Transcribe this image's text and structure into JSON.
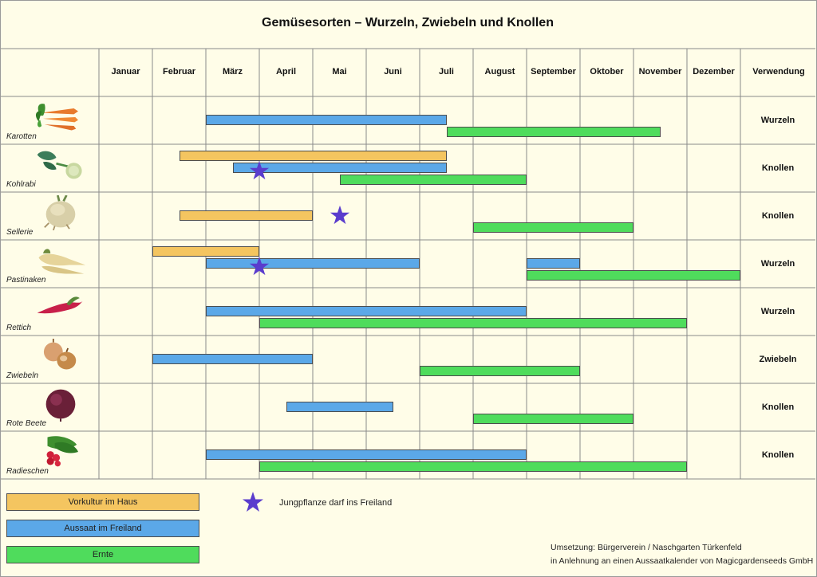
{
  "title": "Gemüsesorten – Wurzeln, Zwiebeln und Knollen",
  "months": [
    "Januar",
    "Februar",
    "März",
    "April",
    "Mai",
    "Juni",
    "Juli",
    "August",
    "September",
    "Oktober",
    "November",
    "Dezember"
  ],
  "use_header": "Verwendung",
  "colors": {
    "vorkultur": "#f4c560",
    "aussaat": "#5ba8e8",
    "ernte": "#4fdc5c",
    "star": "#5a3ccd",
    "background": "#fffde8",
    "grid": "#8a8a8a"
  },
  "chart_data": {
    "type": "gantt",
    "title": "Gemüsesorten – Wurzeln, Zwiebeln und Knollen",
    "x_unit": "month (1 = Anfang Januar, 13 = Ende Dezember)",
    "rows": [
      {
        "name": "Karotten",
        "use": "Wurzeln",
        "icon": "carrot-icon",
        "bars": [
          {
            "type": "aussaat",
            "start": 3.0,
            "end": 7.5
          },
          {
            "type": "ernte",
            "start": 7.5,
            "end": 11.5
          }
        ],
        "stars": []
      },
      {
        "name": "Kohlrabi",
        "use": "Knollen",
        "icon": "kohlrabi-icon",
        "bars": [
          {
            "type": "vorkultur",
            "start": 2.5,
            "end": 7.5
          },
          {
            "type": "aussaat",
            "start": 3.5,
            "end": 7.5
          },
          {
            "type": "ernte",
            "start": 5.5,
            "end": 9.0
          }
        ],
        "stars": [
          4.0
        ]
      },
      {
        "name": "Sellerie",
        "use": "Knollen",
        "icon": "celeriac-icon",
        "bars": [
          {
            "type": "vorkultur",
            "start": 2.5,
            "end": 5.0
          },
          {
            "type": "ernte",
            "start": 8.0,
            "end": 11.0
          }
        ],
        "stars": [
          5.5
        ]
      },
      {
        "name": "Pastinaken",
        "use": "Wurzeln",
        "icon": "parsnip-icon",
        "bars": [
          {
            "type": "vorkultur",
            "start": 2.0,
            "end": 4.0
          },
          {
            "type": "aussaat",
            "start": 3.0,
            "end": 7.0
          },
          {
            "type": "aussaat",
            "start": 9.0,
            "end": 10.0
          },
          {
            "type": "ernte",
            "start": 9.0,
            "end": 13.0
          }
        ],
        "stars": [
          4.0
        ]
      },
      {
        "name": "Rettich",
        "use": "Wurzeln",
        "icon": "radish-icon",
        "bars": [
          {
            "type": "aussaat",
            "start": 3.0,
            "end": 9.0
          },
          {
            "type": "ernte",
            "start": 4.0,
            "end": 12.0
          }
        ],
        "stars": []
      },
      {
        "name": "Zwiebeln",
        "use": "Zwiebeln",
        "icon": "onion-icon",
        "bars": [
          {
            "type": "aussaat",
            "start": 2.0,
            "end": 5.0
          },
          {
            "type": "ernte",
            "start": 7.0,
            "end": 10.0
          }
        ],
        "stars": []
      },
      {
        "name": "Rote Beete",
        "use": "Knollen",
        "icon": "beetroot-icon",
        "bars": [
          {
            "type": "aussaat",
            "start": 4.5,
            "end": 6.5
          },
          {
            "type": "ernte",
            "start": 8.0,
            "end": 11.0
          }
        ],
        "stars": []
      },
      {
        "name": "Radieschen",
        "use": "Knollen",
        "icon": "red-radish-icon",
        "bars": [
          {
            "type": "aussaat",
            "start": 3.0,
            "end": 9.0
          },
          {
            "type": "ernte",
            "start": 4.0,
            "end": 12.0
          }
        ],
        "stars": []
      }
    ]
  },
  "legend": {
    "vorkultur": "Vorkultur im Haus",
    "aussaat": "Aussaat im Freiland",
    "ernte": "Ernte",
    "star": "Jungpflanze darf ins Freiland"
  },
  "credits": {
    "line1": "Umsetzung: Bürgerverein / Naschgarten Türkenfeld",
    "line2": "in Anlehnung an einen Aussaatkalender von Magicgardenseeds GmbH"
  }
}
